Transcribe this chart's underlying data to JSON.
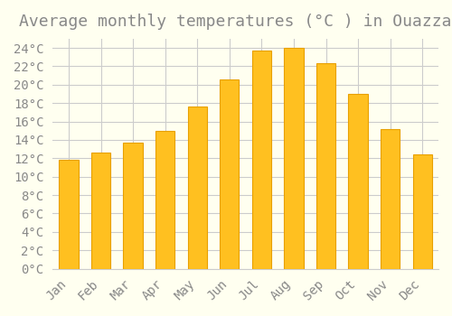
{
  "title": "Average monthly temperatures (°C ) in Ouazzane",
  "months": [
    "Jan",
    "Feb",
    "Mar",
    "Apr",
    "May",
    "Jun",
    "Jul",
    "Aug",
    "Sep",
    "Oct",
    "Nov",
    "Dec"
  ],
  "values": [
    11.8,
    12.6,
    13.7,
    15.0,
    17.6,
    20.6,
    23.7,
    24.0,
    22.3,
    19.0,
    15.2,
    12.4
  ],
  "bar_color": "#FFC020",
  "bar_edge_color": "#E8A000",
  "background_color": "#FFFFF0",
  "grid_color": "#CCCCCC",
  "text_color": "#888888",
  "ylim": [
    0,
    25
  ],
  "ytick_step": 2,
  "title_fontsize": 13,
  "tick_fontsize": 10,
  "font_family": "monospace"
}
